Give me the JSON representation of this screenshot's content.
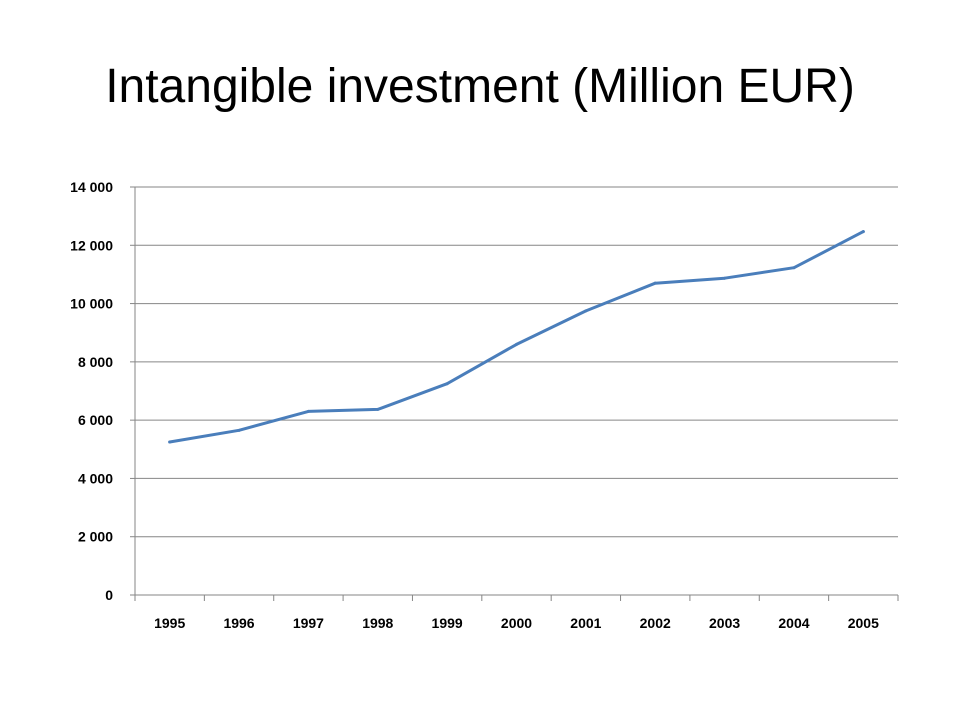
{
  "slide": {
    "title": "Intangible investment (Million EUR)"
  },
  "chart_data": {
    "type": "line",
    "title": "Intangible investment (Million EUR)",
    "xlabel": "",
    "ylabel": "",
    "categories": [
      "1995",
      "1996",
      "1997",
      "1998",
      "1999",
      "2000",
      "2001",
      "2002",
      "2003",
      "2004",
      "2005"
    ],
    "series": [
      {
        "name": "",
        "values": [
          5250,
          5650,
          6300,
          6370,
          7250,
          8600,
          9750,
          10700,
          10870,
          11230,
          12470
        ]
      }
    ],
    "ylim": [
      0,
      14000
    ],
    "y_ticks": [
      0,
      2000,
      4000,
      6000,
      8000,
      10000,
      12000,
      14000
    ],
    "y_tick_labels": [
      "0",
      "2 000",
      "4 000",
      "6 000",
      "8 000",
      "10 000",
      "12 000",
      "14 000"
    ],
    "grid": "horizontal",
    "legend": "none",
    "colors": {
      "line": "#4a7ebb",
      "grid": "#868686",
      "axis": "#868686"
    }
  }
}
